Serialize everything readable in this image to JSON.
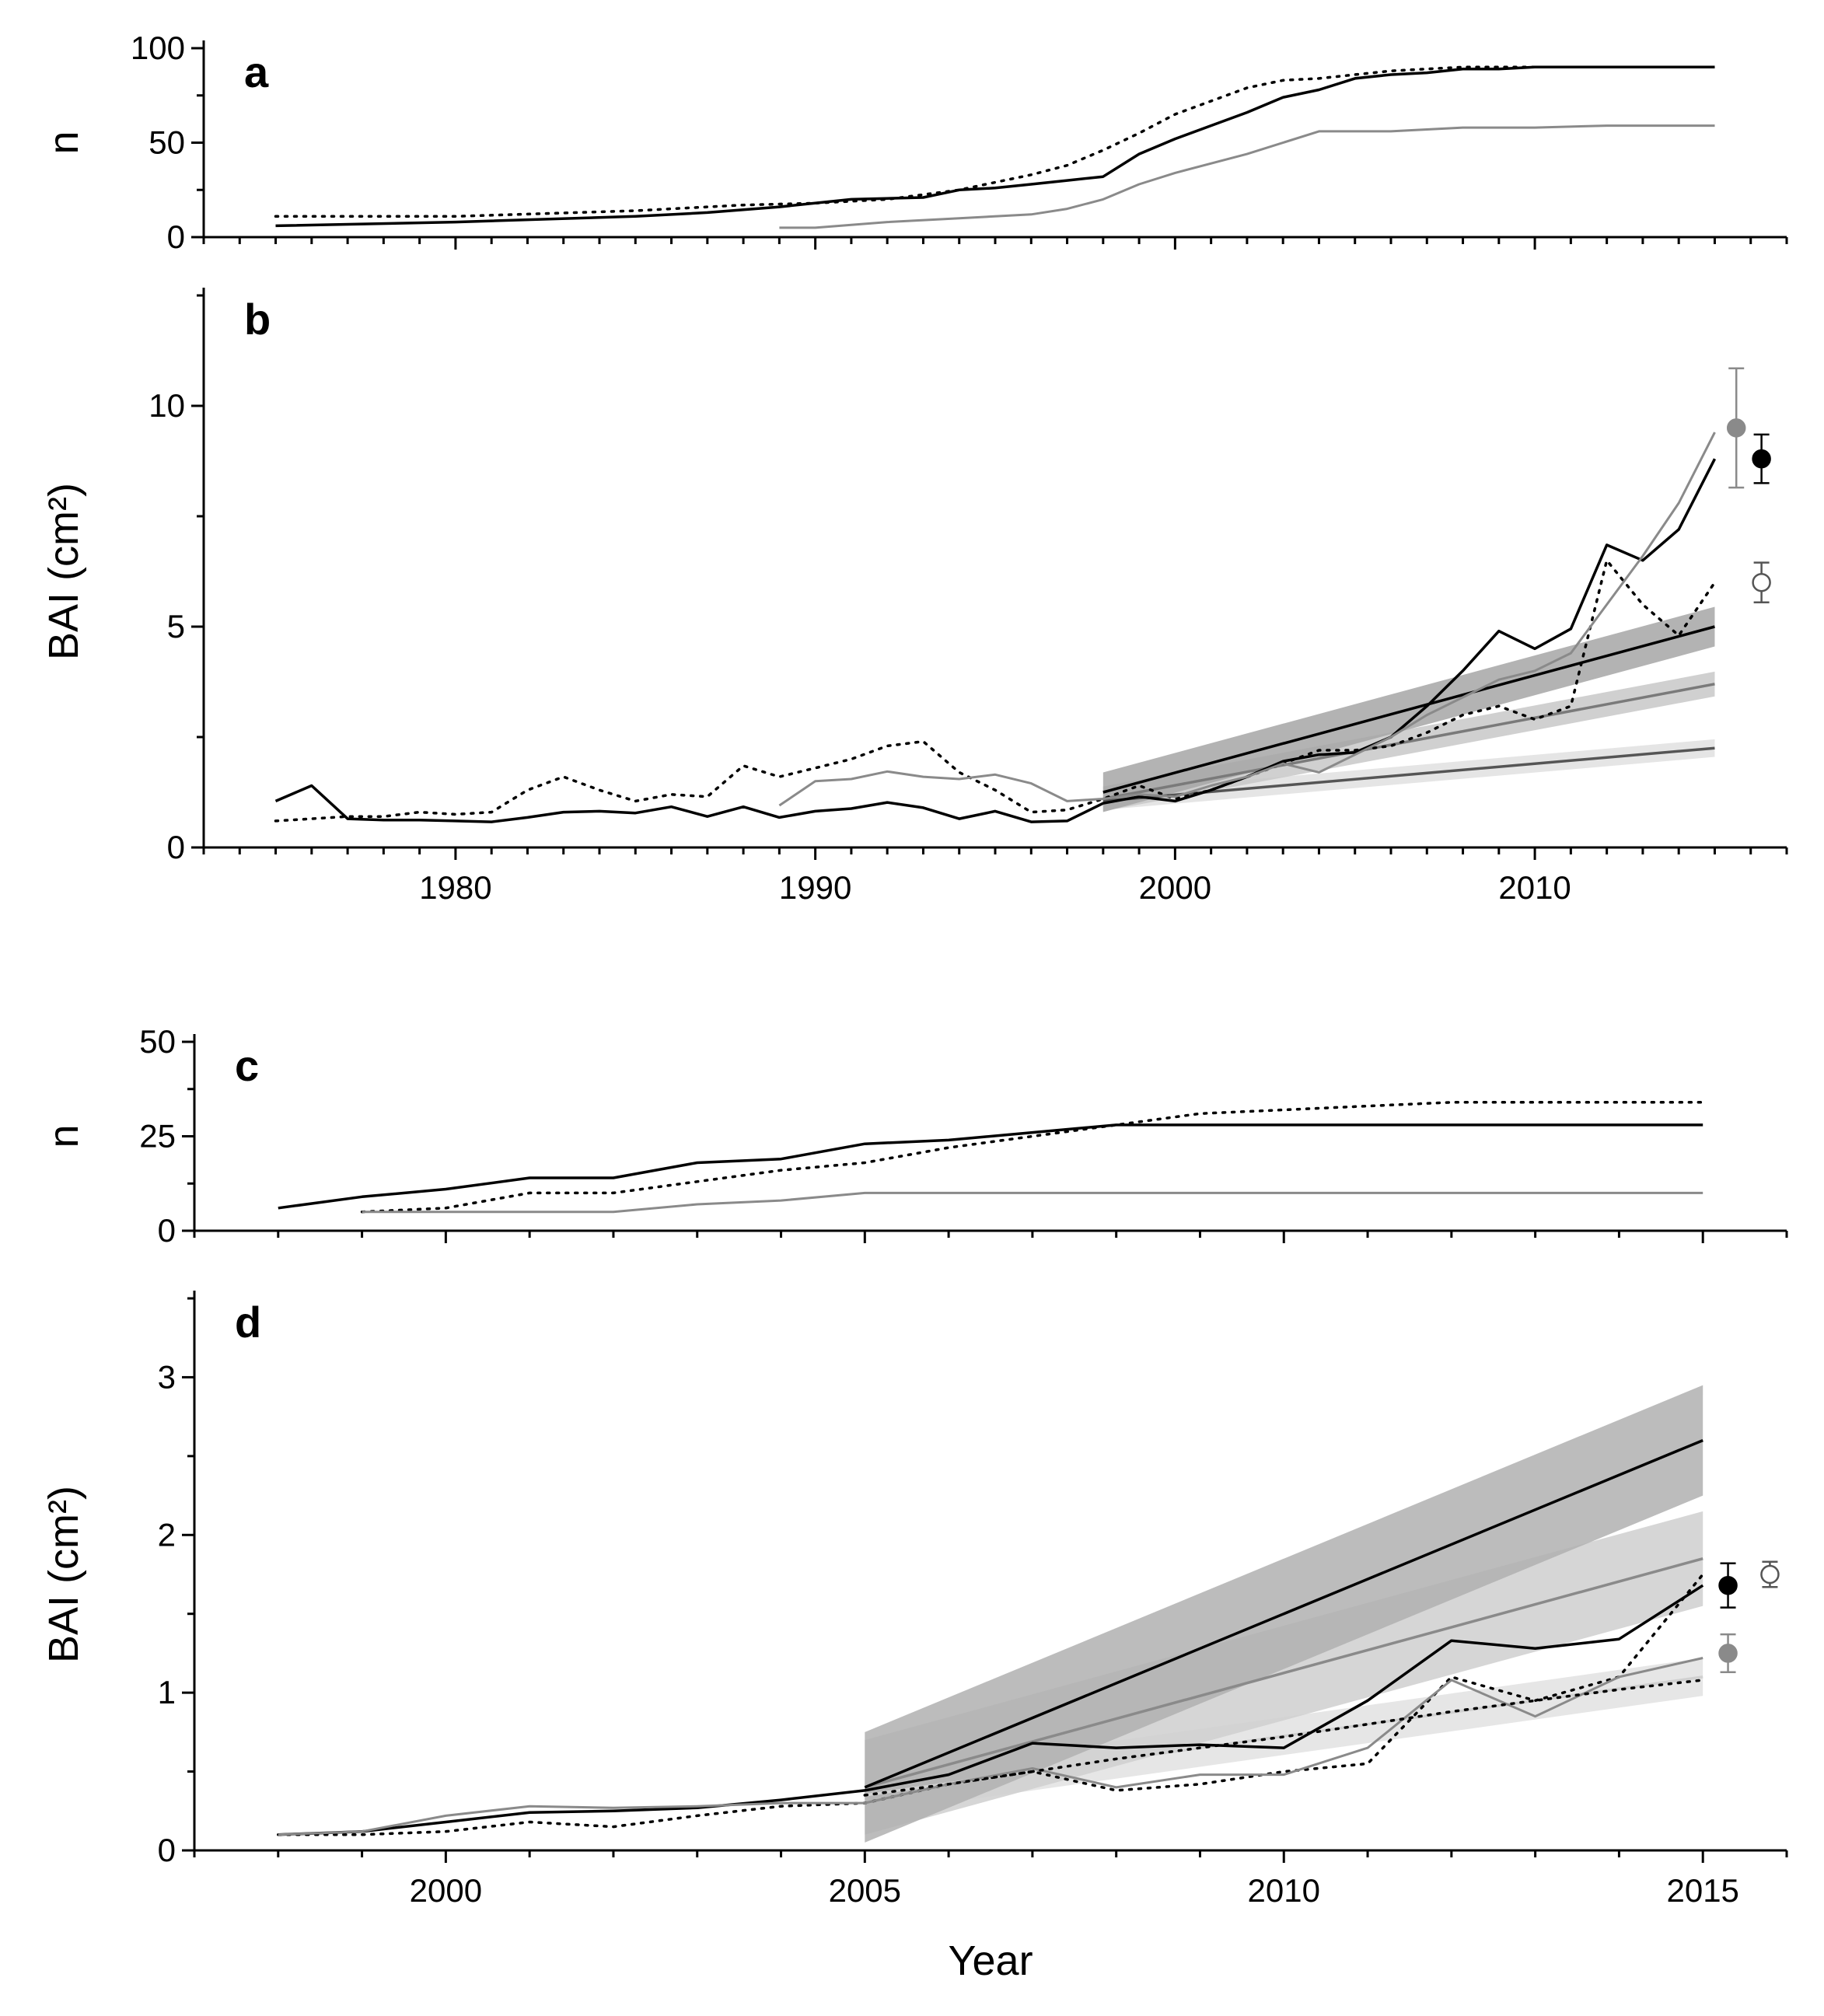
{
  "figure": {
    "xlabel": "Year"
  },
  "colors": {
    "black": "#000000",
    "gray": "#8a8a8a",
    "dotted": "#000000",
    "band_dark": "#9a9a9a",
    "band_mid": "#c4c4c4",
    "band_light": "#dedede"
  },
  "chart_data": [
    {
      "panel": "a",
      "type": "line",
      "ylabel": "n",
      "xlim": [
        1973,
        2017
      ],
      "ylim": [
        0,
        100
      ],
      "yticks": [
        0,
        50,
        100
      ],
      "xticks": [],
      "series": [
        {
          "name": "black",
          "style": "solid-black",
          "x": [
            1975,
            1980,
            1985,
            1987,
            1989,
            1991,
            1993,
            1994,
            1995,
            1996,
            1997,
            1998,
            1999,
            2000,
            2001,
            2002,
            2003,
            2004,
            2005,
            2006,
            2007,
            2008,
            2009,
            2010,
            2011,
            2015
          ],
          "y": [
            6,
            8,
            11,
            13,
            16,
            20,
            21,
            25,
            26,
            28,
            30,
            32,
            44,
            52,
            59,
            66,
            74,
            78,
            84,
            86,
            87,
            89,
            89,
            90,
            90,
            90
          ]
        },
        {
          "name": "dotted",
          "style": "dotted-black",
          "x": [
            1975,
            1980,
            1985,
            1988,
            1990,
            1992,
            1994,
            1995,
            1996,
            1997,
            1998,
            1999,
            2000,
            2001,
            2002,
            2003,
            2004,
            2005,
            2006,
            2007,
            2008,
            2009,
            2010,
            2015
          ],
          "y": [
            11,
            11,
            14,
            17,
            18,
            20,
            25,
            29,
            33,
            38,
            46,
            55,
            65,
            72,
            79,
            83,
            84,
            86,
            88,
            89,
            90,
            90,
            90,
            90
          ]
        },
        {
          "name": "gray",
          "style": "solid-gray",
          "x": [
            1989,
            1990,
            1992,
            1994,
            1996,
            1997,
            1998,
            1999,
            2000,
            2002,
            2004,
            2005,
            2006,
            2008,
            2010,
            2012,
            2015
          ],
          "y": [
            5,
            5,
            8,
            10,
            12,
            15,
            20,
            28,
            34,
            44,
            56,
            56,
            56,
            58,
            58,
            59,
            59
          ]
        }
      ]
    },
    {
      "panel": "b",
      "type": "line",
      "ylabel": "BAI (cm²)",
      "xlim": [
        1973,
        2017
      ],
      "ylim": [
        0,
        12.5
      ],
      "yticks": [
        0,
        5,
        10
      ],
      "xticks": [
        1980,
        1990,
        2000,
        2010
      ],
      "series": [
        {
          "name": "black",
          "style": "solid-black",
          "x": [
            1975,
            1976,
            1977,
            1978,
            1979,
            1980,
            1981,
            1982,
            1983,
            1984,
            1985,
            1986,
            1987,
            1988,
            1989,
            1990,
            1991,
            1992,
            1993,
            1994,
            1995,
            1996,
            1997,
            1998,
            1999,
            2000,
            2001,
            2002,
            2003,
            2004,
            2005,
            2006,
            2007,
            2008,
            2009,
            2010,
            2011,
            2012,
            2013,
            2014,
            2015
          ],
          "y": [
            1.05,
            1.4,
            0.65,
            0.62,
            0.62,
            0.6,
            0.58,
            0.68,
            0.8,
            0.82,
            0.78,
            0.92,
            0.7,
            0.92,
            0.68,
            0.82,
            0.88,
            1.02,
            0.9,
            0.65,
            0.82,
            0.58,
            0.6,
            1.0,
            1.15,
            1.05,
            1.3,
            1.6,
            1.95,
            2.1,
            2.15,
            2.5,
            3.2,
            4.0,
            4.9,
            4.5,
            4.95,
            6.85,
            6.5,
            7.2,
            8.8
          ]
        },
        {
          "name": "dotted",
          "style": "dotted-black",
          "x": [
            1975,
            1976,
            1977,
            1978,
            1979,
            1980,
            1981,
            1982,
            1983,
            1984,
            1985,
            1986,
            1987,
            1988,
            1989,
            1990,
            1991,
            1992,
            1993,
            1994,
            1995,
            1996,
            1997,
            1998,
            1999,
            2000,
            2001,
            2002,
            2003,
            2004,
            2005,
            2006,
            2007,
            2008,
            2009,
            2010,
            2011,
            2012,
            2013,
            2014,
            2015
          ],
          "y": [
            0.6,
            0.65,
            0.7,
            0.7,
            0.8,
            0.75,
            0.8,
            1.3,
            1.6,
            1.3,
            1.05,
            1.2,
            1.15,
            1.85,
            1.6,
            1.8,
            2.0,
            2.3,
            2.4,
            1.7,
            1.3,
            0.8,
            0.85,
            1.1,
            1.4,
            1.1,
            1.3,
            1.6,
            1.9,
            2.2,
            2.2,
            2.3,
            2.6,
            3.0,
            3.2,
            2.9,
            3.2,
            6.5,
            5.5,
            4.8,
            6.0
          ]
        },
        {
          "name": "gray",
          "style": "solid-gray",
          "x": [
            1989,
            1990,
            1991,
            1992,
            1993,
            1994,
            1995,
            1996,
            1997,
            1998,
            1999,
            2000,
            2001,
            2002,
            2003,
            2004,
            2005,
            2006,
            2007,
            2008,
            2009,
            2010,
            2011,
            2012,
            2013,
            2014,
            2015
          ],
          "y": [
            0.95,
            1.5,
            1.55,
            1.72,
            1.6,
            1.55,
            1.65,
            1.45,
            1.05,
            1.1,
            1.2,
            1.15,
            1.4,
            1.6,
            1.9,
            1.7,
            2.1,
            2.5,
            3.0,
            3.4,
            3.8,
            4.0,
            4.4,
            5.5,
            6.6,
            7.8,
            9.4
          ]
        }
      ],
      "trends": [
        {
          "name": "dotted-trend",
          "line": "#555555",
          "band": "#e0e0e0",
          "x0": 1998,
          "x1": 2015,
          "y0": 1.05,
          "y1": 2.25,
          "band_half": 0.2
        },
        {
          "name": "gray-trend",
          "line": "#7a7a7a",
          "band": "#c8c8c8",
          "x0": 1998,
          "x1": 2015,
          "y0": 1.1,
          "y1": 3.7,
          "band_half": 0.28
        },
        {
          "name": "black-trend",
          "line": "#000000",
          "band": "#a6a6a6",
          "x0": 1998,
          "x1": 2015,
          "y0": 1.25,
          "y1": 5.0,
          "band_half": 0.45
        }
      ],
      "points": [
        {
          "name": "gray-mean",
          "x": 2015.6,
          "y": 9.5,
          "err": 1.35,
          "fill": "#8a8a8a",
          "stroke": "#8a8a8a"
        },
        {
          "name": "black-mean",
          "x": 2016.3,
          "y": 8.8,
          "err": 0.55,
          "fill": "#000000",
          "stroke": "#000000"
        },
        {
          "name": "open-mean",
          "x": 2016.3,
          "y": 6.0,
          "err": 0.45,
          "fill": "#ffffff",
          "stroke": "#555555"
        }
      ]
    },
    {
      "panel": "c",
      "type": "line",
      "ylabel": "n",
      "xlim": [
        1997,
        2016
      ],
      "ylim": [
        0,
        50
      ],
      "yticks": [
        0,
        25,
        50
      ],
      "xticks": [],
      "series": [
        {
          "name": "black",
          "style": "solid-black",
          "x": [
            1998,
            1999,
            2000,
            2001,
            2002,
            2003,
            2004,
            2005,
            2006,
            2007,
            2008,
            2015
          ],
          "y": [
            6,
            9,
            11,
            14,
            14,
            18,
            19,
            23,
            24,
            26,
            28,
            28
          ]
        },
        {
          "name": "dotted",
          "style": "dotted-black",
          "x": [
            1999,
            2000,
            2001,
            2002,
            2003,
            2004,
            2005,
            2006,
            2007,
            2008,
            2009,
            2010,
            2011,
            2012,
            2015
          ],
          "y": [
            5,
            6,
            10,
            10,
            13,
            16,
            18,
            22,
            25,
            28,
            31,
            32,
            33,
            34,
            34
          ]
        },
        {
          "name": "gray",
          "style": "solid-gray",
          "x": [
            1999,
            2000,
            2002,
            2003,
            2004,
            2005,
            2006,
            2008,
            2015
          ],
          "y": [
            5,
            5,
            5,
            7,
            8,
            10,
            10,
            10,
            10
          ]
        }
      ]
    },
    {
      "panel": "d",
      "type": "line",
      "ylabel": "BAI (cm²)",
      "xlim": [
        1997,
        2016
      ],
      "ylim": [
        0,
        3.5
      ],
      "yticks": [
        0,
        1,
        2,
        3
      ],
      "xticks": [
        2000,
        2005,
        2010,
        2015
      ],
      "series": [
        {
          "name": "black",
          "style": "solid-black",
          "x": [
            1998,
            1999,
            2000,
            2001,
            2002,
            2003,
            2004,
            2005,
            2006,
            2007,
            2008,
            2009,
            2010,
            2011,
            2012,
            2013,
            2014,
            2015
          ],
          "y": [
            0.1,
            0.12,
            0.18,
            0.24,
            0.25,
            0.27,
            0.32,
            0.38,
            0.48,
            0.68,
            0.65,
            0.67,
            0.65,
            0.95,
            1.33,
            1.28,
            1.34,
            1.68
          ]
        },
        {
          "name": "dotted",
          "style": "dotted-black",
          "x": [
            1998,
            1999,
            2000,
            2001,
            2002,
            2003,
            2004,
            2005,
            2006,
            2007,
            2008,
            2009,
            2010,
            2011,
            2012,
            2013,
            2014,
            2015
          ],
          "y": [
            0.1,
            0.1,
            0.12,
            0.18,
            0.15,
            0.22,
            0.28,
            0.3,
            0.42,
            0.5,
            0.38,
            0.42,
            0.5,
            0.55,
            1.1,
            0.95,
            1.1,
            1.75
          ]
        },
        {
          "name": "gray",
          "style": "solid-gray",
          "x": [
            1998,
            1999,
            2000,
            2001,
            2002,
            2003,
            2004,
            2005,
            2006,
            2007,
            2008,
            2009,
            2010,
            2011,
            2012,
            2013,
            2014,
            2015
          ],
          "y": [
            0.1,
            0.12,
            0.22,
            0.28,
            0.27,
            0.28,
            0.3,
            0.3,
            0.42,
            0.52,
            0.4,
            0.48,
            0.48,
            0.65,
            1.08,
            0.85,
            1.1,
            1.22
          ]
        },
        {
          "name": "dotted-b",
          "style": "dotted-black",
          "x": [
            2005,
            2006,
            2007,
            2008,
            2009,
            2010,
            2011,
            2012,
            2013,
            2014,
            2015
          ],
          "y": [
            0.35,
            0.42,
            0.5,
            0.58,
            0.65,
            0.72,
            0.8,
            0.88,
            0.95,
            1.02,
            1.08
          ]
        }
      ],
      "trends": [
        {
          "name": "dotted-trend",
          "line": "#d0d0d0",
          "band": "#e2e2e2",
          "x0": 2005,
          "x1": 2015,
          "y0": 0.35,
          "y1": 1.1,
          "band_half": 0.12
        },
        {
          "name": "gray-trend",
          "line": "#8a8a8a",
          "band": "#cfcfcf",
          "x0": 2005,
          "x1": 2015,
          "y0": 0.4,
          "y1": 1.85,
          "band_half": 0.3
        },
        {
          "name": "black-trend",
          "line": "#000000",
          "band": "#b0b0b0",
          "x0": 2005,
          "x1": 2015,
          "y0": 0.4,
          "y1": 2.6,
          "band_half": 0.35
        }
      ],
      "points": [
        {
          "name": "black-mean",
          "x": 2015.3,
          "y": 1.68,
          "err": 0.14,
          "fill": "#000000",
          "stroke": "#000000"
        },
        {
          "name": "open-mean",
          "x": 2015.8,
          "y": 1.75,
          "err": 0.08,
          "fill": "#ffffff",
          "stroke": "#555555"
        },
        {
          "name": "gray-mean",
          "x": 2015.3,
          "y": 1.25,
          "err": 0.12,
          "fill": "#8a8a8a",
          "stroke": "#8a8a8a"
        }
      ]
    }
  ]
}
